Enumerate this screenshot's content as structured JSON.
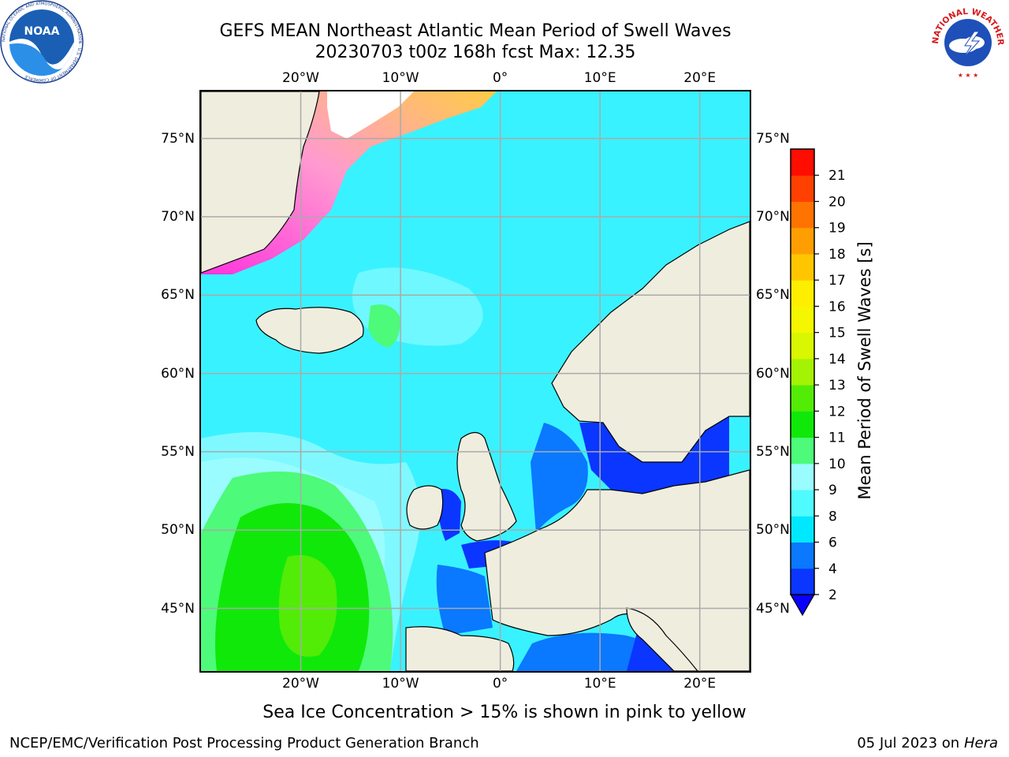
{
  "title": {
    "line1": "GEFS MEAN Northeast Atlantic Mean Period of Swell Waves",
    "line2": "20230703 t00z 168h fcst   Max: 12.35"
  },
  "map": {
    "lon_range": [
      -30,
      25
    ],
    "lat_range": [
      41,
      78
    ],
    "lon_ticks": [
      {
        "value": -20,
        "label": "20°W"
      },
      {
        "value": -10,
        "label": "10°W"
      },
      {
        "value": 0,
        "label": "0°"
      },
      {
        "value": 10,
        "label": "10°E"
      },
      {
        "value": 20,
        "label": "20°E"
      }
    ],
    "lat_ticks": [
      {
        "value": 75,
        "label": "75°N"
      },
      {
        "value": 70,
        "label": "70°N"
      },
      {
        "value": 65,
        "label": "65°N"
      },
      {
        "value": 60,
        "label": "60°N"
      },
      {
        "value": 55,
        "label": "55°N"
      },
      {
        "value": 50,
        "label": "50°N"
      },
      {
        "value": 45,
        "label": "45°N"
      }
    ],
    "colors": {
      "land": "#efedde",
      "ocean_default": "#39f2ff",
      "gridline": "#aaaaaa",
      "coastline": "#000000",
      "ice_high": "#ffffff",
      "ice_mid": "#ffe04a",
      "ice_low": "#ff33dd"
    }
  },
  "colorbar": {
    "label": "Mean Period of Swell Waves [s]",
    "levels": [
      2,
      4,
      6,
      8,
      9,
      10,
      11,
      12,
      13,
      14,
      15,
      16,
      17,
      18,
      19,
      20,
      21
    ],
    "colors": [
      "#0a36ff",
      "#0a78ff",
      "#00e8ff",
      "#50fbff",
      "#9afcff",
      "#4dfa7a",
      "#10e80a",
      "#52ec07",
      "#a4f204",
      "#d8f701",
      "#f4f700",
      "#ffee00",
      "#ffc600",
      "#ff9e00",
      "#ff7300",
      "#ff4000",
      "#ff0d00"
    ],
    "under_color": "#0a00ff",
    "tick_labels": [
      "2",
      "4",
      "6",
      "8",
      "9",
      "10",
      "11",
      "12",
      "13",
      "14",
      "15",
      "16",
      "17",
      "18",
      "19",
      "20",
      "21"
    ]
  },
  "note": "Sea Ice Concentration > 15% is shown in pink to yellow",
  "credit_left": "NCEP/EMC/Verification Post Processing Product Generation Branch",
  "credit_date": "05 Jul 2023 on ",
  "credit_machine": "Hera",
  "logos": {
    "noaa_text": "NOAA",
    "noaa_ring": "NATIONAL OCEANIC AND ATMOSPHERIC ADMINISTRATION · U.S. DEPARTMENT OF COMMERCE",
    "nws_ring": "NATIONAL WEATHER SERVICE"
  }
}
